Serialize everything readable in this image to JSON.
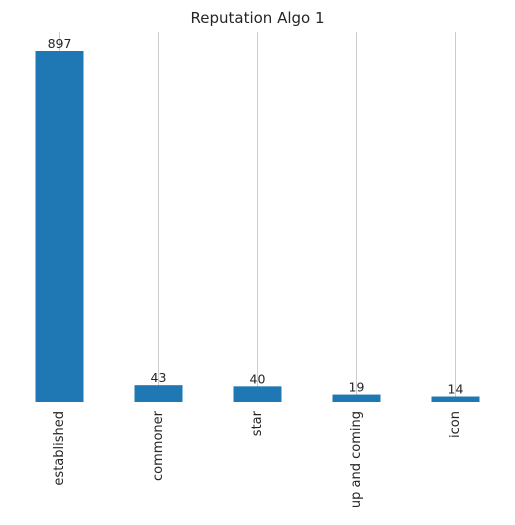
{
  "chart_data": {
    "type": "bar",
    "title": "Reputation Algo 1",
    "categories": [
      "established",
      "commoner",
      "star",
      "up and coming",
      "icon"
    ],
    "values": [
      897,
      43,
      40,
      19,
      14
    ],
    "xlabel": "",
    "ylabel": "",
    "ylim": [
      0,
      897
    ],
    "grid": "vertical",
    "data_labels": true,
    "bar_color": "#1f77b4",
    "tick_label_rotation": "vertical"
  }
}
